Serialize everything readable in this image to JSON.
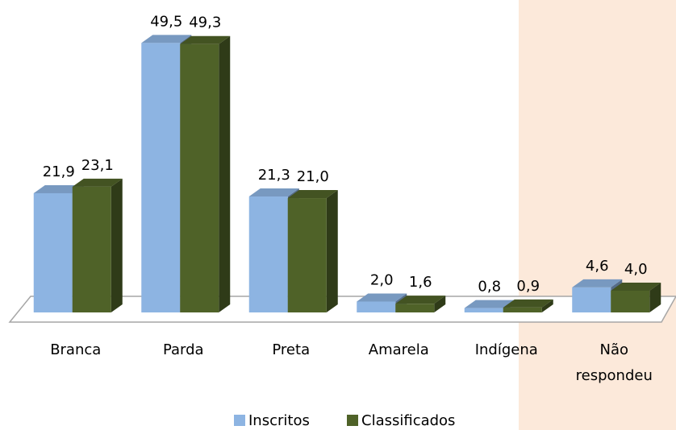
{
  "chart_data": {
    "type": "bar3d",
    "categories": [
      "Branca",
      "Parda",
      "Preta",
      "Amarela",
      "Indígena",
      "Não respondeu"
    ],
    "series": [
      {
        "name": "Inscritos",
        "color": "#8db4e2",
        "values": [
          21.9,
          49.5,
          21.3,
          2.0,
          0.8,
          4.6
        ],
        "value_labels": [
          "21,9",
          "49,5",
          "21,3",
          "2,0",
          "0,8",
          "4,6"
        ]
      },
      {
        "name": "Classificados",
        "color": "#4f6228",
        "values": [
          23.1,
          49.3,
          21.0,
          1.6,
          0.9,
          4.0
        ],
        "value_labels": [
          "23,1",
          "49,3",
          "21,0",
          "1,6",
          "0,9",
          "4,0"
        ]
      }
    ],
    "ylim": [
      0,
      50
    ]
  }
}
